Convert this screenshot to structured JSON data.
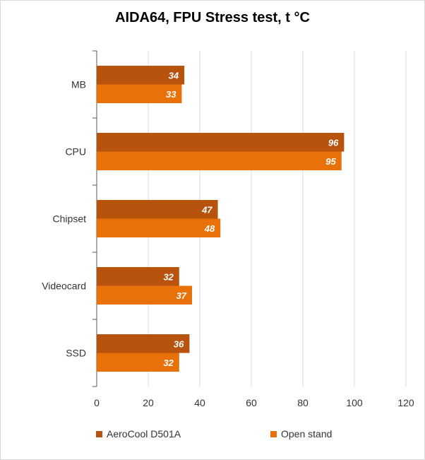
{
  "chart_data": {
    "type": "bar",
    "orientation": "horizontal",
    "title": "AIDA64, FPU Stress test, t °C",
    "categories": [
      "MB",
      "CPU",
      "Chipset",
      "Videocard",
      "SSD"
    ],
    "series": [
      {
        "name": "AeroCool D501A",
        "values": [
          34,
          96,
          47,
          32,
          36
        ],
        "color": "#b8530d"
      },
      {
        "name": "Open stand",
        "values": [
          33,
          95,
          48,
          37,
          32
        ],
        "color": "#e8710a"
      }
    ],
    "xlim": [
      0,
      120
    ],
    "xticks": [
      "0",
      "20",
      "40",
      "60",
      "80",
      "100",
      "120"
    ],
    "grid": true,
    "legend_position": "bottom"
  }
}
